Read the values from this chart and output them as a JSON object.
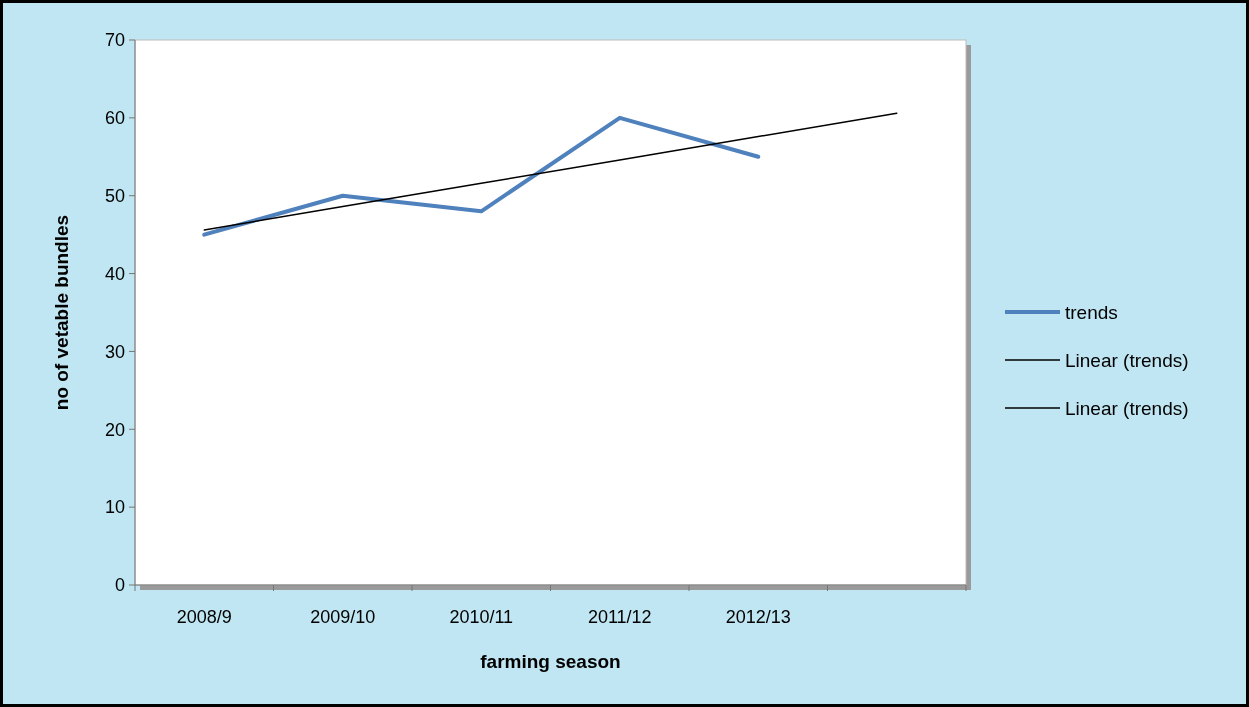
{
  "chart_data": {
    "type": "line",
    "xlabel": "farming season",
    "ylabel": "no of vetable bundles",
    "categories": [
      "2008/9",
      "2009/10",
      "2010/11",
      "2011/12",
      "2012/13",
      null
    ],
    "ylim": [
      0,
      70
    ],
    "yticks": [
      0,
      10,
      20,
      30,
      40,
      50,
      60,
      70
    ],
    "grid": false,
    "legend": "right",
    "marker": "none",
    "series": [
      {
        "name": "trends",
        "color": "#4f81bd",
        "values": [
          45,
          50,
          48,
          60,
          55,
          null
        ]
      },
      {
        "name": "Linear (trends)",
        "color": "#000000",
        "values": [
          45.6,
          48.6,
          51.6,
          54.6,
          57.6,
          60.6
        ]
      },
      {
        "name": "Linear (trends)",
        "color": "#000000",
        "values": [
          null,
          null,
          null,
          null,
          null,
          null
        ]
      }
    ]
  }
}
